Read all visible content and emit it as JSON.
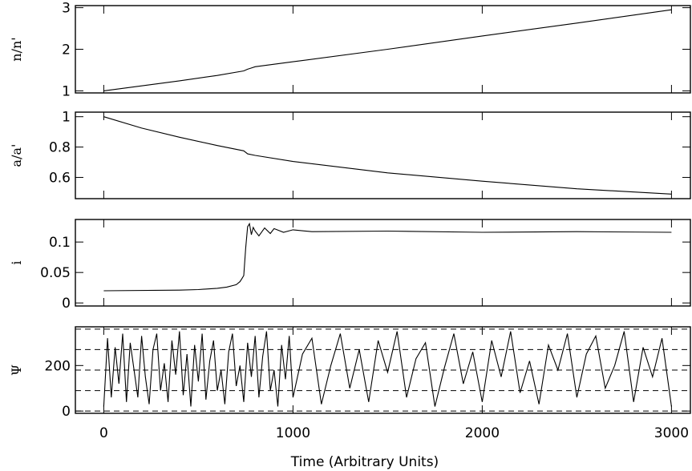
{
  "figure": {
    "xlabel": "Time (Arbitrary Units)",
    "x_ticks": [
      0,
      1000,
      2000,
      3000
    ]
  },
  "chart_data": [
    {
      "type": "line",
      "ylabel": "n/n'",
      "xlim": [
        -150,
        3100
      ],
      "ylim": [
        0.95,
        3.05
      ],
      "y_ticks": [
        1,
        2,
        3
      ],
      "series": [
        {
          "x": [
            0,
            200,
            400,
            600,
            740,
            760,
            780,
            800,
            1000,
            1500,
            2000,
            2500,
            3000
          ],
          "y": [
            1.0,
            1.12,
            1.24,
            1.37,
            1.48,
            1.52,
            1.55,
            1.58,
            1.7,
            2.0,
            2.32,
            2.63,
            2.95
          ]
        }
      ]
    },
    {
      "type": "line",
      "ylabel": "a/a'",
      "xlim": [
        -150,
        3100
      ],
      "ylim": [
        0.46,
        1.03
      ],
      "y_ticks": [
        0.6,
        0.8,
        1
      ],
      "series": [
        {
          "x": [
            0,
            200,
            400,
            600,
            740,
            760,
            800,
            1000,
            1500,
            2000,
            2500,
            3000
          ],
          "y": [
            1.0,
            0.925,
            0.865,
            0.81,
            0.775,
            0.755,
            0.745,
            0.705,
            0.63,
            0.575,
            0.525,
            0.49
          ]
        }
      ]
    },
    {
      "type": "line",
      "ylabel": "i",
      "xlim": [
        -150,
        3100
      ],
      "ylim": [
        -0.005,
        0.137
      ],
      "y_ticks": [
        0,
        0.05,
        0.1
      ],
      "series": [
        {
          "x": [
            0,
            400,
            500,
            600,
            650,
            700,
            720,
            730,
            740,
            750,
            760,
            770,
            780,
            790,
            800,
            820,
            850,
            880,
            900,
            950,
            1000,
            1100,
            1500,
            2000,
            2500,
            3000
          ],
          "y": [
            0.02,
            0.021,
            0.022,
            0.024,
            0.026,
            0.03,
            0.035,
            0.04,
            0.045,
            0.09,
            0.125,
            0.13,
            0.112,
            0.124,
            0.118,
            0.11,
            0.123,
            0.114,
            0.122,
            0.116,
            0.12,
            0.117,
            0.118,
            0.116,
            0.117,
            0.116
          ]
        }
      ]
    },
    {
      "type": "line",
      "ylabel": "Ψ",
      "xlim": [
        -150,
        3100
      ],
      "ylim": [
        -10,
        370
      ],
      "y_ticks": [
        0,
        200
      ],
      "reference_lines_y": [
        0,
        90,
        180,
        270,
        360
      ],
      "series": [
        {
          "x": [
            0,
            20,
            40,
            60,
            80,
            100,
            120,
            140,
            160,
            180,
            200,
            220,
            240,
            260,
            280,
            300,
            320,
            340,
            360,
            380,
            400,
            420,
            440,
            460,
            480,
            500,
            520,
            540,
            560,
            580,
            600,
            620,
            640,
            660,
            680,
            700,
            720,
            740,
            760,
            780,
            800,
            820,
            840,
            860,
            880,
            900,
            920,
            940,
            960,
            980,
            1000,
            1050,
            1100,
            1150,
            1200,
            1250,
            1300,
            1350,
            1400,
            1450,
            1500,
            1550,
            1600,
            1650,
            1700,
            1750,
            1800,
            1850,
            1900,
            1950,
            2000,
            2050,
            2100,
            2150,
            2200,
            2250,
            2300,
            2350,
            2400,
            2450,
            2500,
            2550,
            2600,
            2650,
            2700,
            2750,
            2800,
            2850,
            2900,
            2950,
            3000
          ],
          "y": [
            20,
            320,
            60,
            280,
            120,
            340,
            40,
            300,
            180,
            60,
            330,
            150,
            30,
            270,
            340,
            90,
            210,
            40,
            310,
            160,
            350,
            70,
            250,
            20,
            290,
            130,
            340,
            50,
            220,
            310,
            90,
            180,
            30,
            260,
            340,
            110,
            200,
            40,
            300,
            150,
            330,
            60,
            240,
            350,
            90,
            180,
            20,
            290,
            140,
            330,
            60,
            250,
            320,
            30,
            200,
            340,
            100,
            270,
            40,
            310,
            170,
            350,
            60,
            230,
            300,
            20,
            190,
            340,
            120,
            260,
            40,
            310,
            150,
            350,
            80,
            220,
            30,
            290,
            180,
            340,
            60,
            250,
            330,
            100,
            200,
            350,
            40,
            280,
            150,
            320,
            20
          ]
        }
      ]
    }
  ]
}
